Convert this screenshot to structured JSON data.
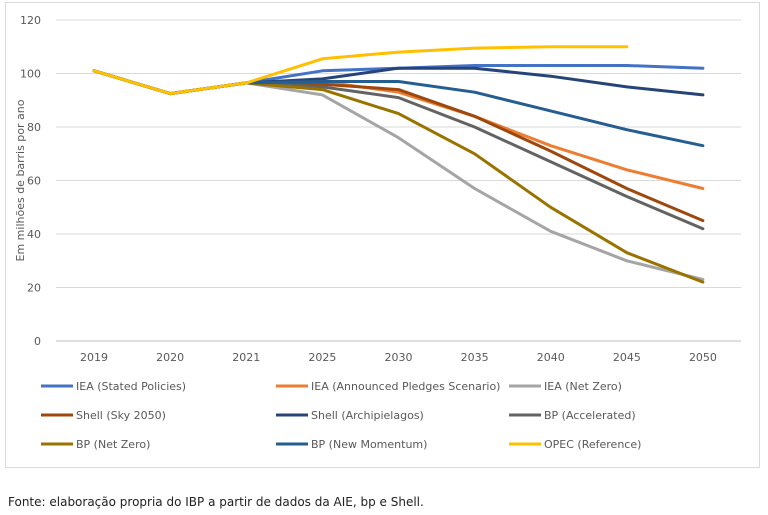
{
  "chart_data": {
    "type": "line",
    "ylabel": "Em milhões de barris por ano",
    "xlabel": "",
    "ylim": [
      0,
      120
    ],
    "yticks": [
      0,
      20,
      40,
      60,
      80,
      100,
      120
    ],
    "grid": true,
    "legend_position": "bottom",
    "categories": [
      "2019",
      "2020",
      "2021",
      "2025",
      "2030",
      "2035",
      "2040",
      "2045",
      "2050"
    ],
    "series": [
      {
        "name": "IEA (Stated Policies)",
        "color": "#4472C4",
        "values": [
          101,
          92.5,
          96.5,
          101,
          102,
          103,
          103,
          103,
          102
        ]
      },
      {
        "name": "IEA (Announced Pledges Scenario)",
        "color": "#ED7D31",
        "values": [
          101,
          92.5,
          96.5,
          97,
          93,
          84,
          73,
          64,
          57
        ]
      },
      {
        "name": "IEA (Net Zero)",
        "color": "#A5A5A5",
        "values": [
          101,
          92.5,
          96.5,
          92,
          76,
          57,
          41,
          30,
          23
        ]
      },
      {
        "name": "Shell (Sky 2050)",
        "color": "#9E480E",
        "values": [
          101,
          92.5,
          96.5,
          96,
          94,
          84,
          71,
          57,
          45
        ]
      },
      {
        "name": "Shell (Archipielagos)",
        "color": "#264478",
        "values": [
          101,
          92.5,
          96.5,
          98,
          102,
          102,
          99,
          95,
          92
        ]
      },
      {
        "name": "BP (Accelerated)",
        "color": "#636363",
        "values": [
          101,
          92.5,
          96.5,
          95,
          91,
          80,
          67,
          54,
          42
        ]
      },
      {
        "name": "BP (Net Zero)",
        "color": "#997300",
        "values": [
          101,
          92.5,
          96.5,
          94,
          85,
          70,
          50,
          33,
          22
        ]
      },
      {
        "name": "BP (New Momentum)",
        "color": "#255E91",
        "values": [
          101,
          92.5,
          96.5,
          97,
          97,
          93,
          86,
          79,
          73
        ]
      },
      {
        "name": "OPEC (Reference)",
        "color": "#FFC000",
        "values": [
          101,
          92.5,
          96.5,
          105.5,
          108,
          109.5,
          110,
          110,
          null
        ]
      }
    ]
  },
  "source_note": "Fonte: elaboração propria do IBP a partir de dados da AIE, bp e Shell."
}
